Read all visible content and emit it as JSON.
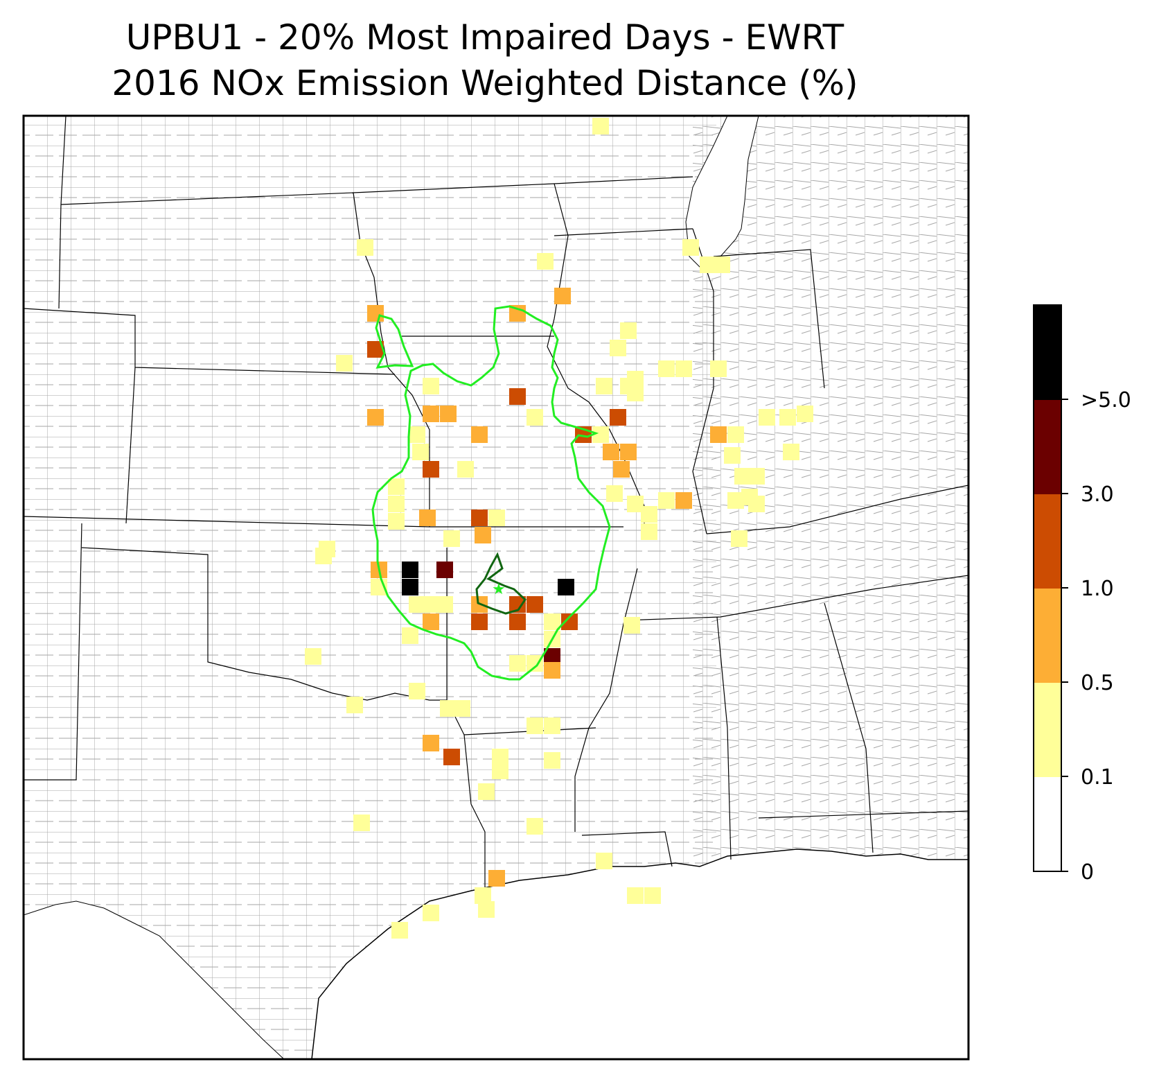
{
  "title_line1": "UPBU1 - 20% Most Impaired Days - EWRT",
  "title_line2": "2016 NOx Emission Weighted Distance (%)",
  "colors": {
    "bin_0_01": "#ffffff",
    "bin_01_05": "#ffff99",
    "bin_05_1": "#fdae35",
    "bin_1_3": "#cc4c02",
    "bin_3_5": "#6b0000",
    "bin_gt5": "#000000",
    "contour_outer": "#22ee22",
    "contour_inner": "#116611",
    "county_lines": "#a6a6a6",
    "state_lines": "#000000"
  },
  "colorbar": {
    "ticks": [
      "0",
      "0.1",
      "0.5",
      "1.0",
      "3.0",
      ">5.0"
    ]
  },
  "site_marker": "star-icon"
}
